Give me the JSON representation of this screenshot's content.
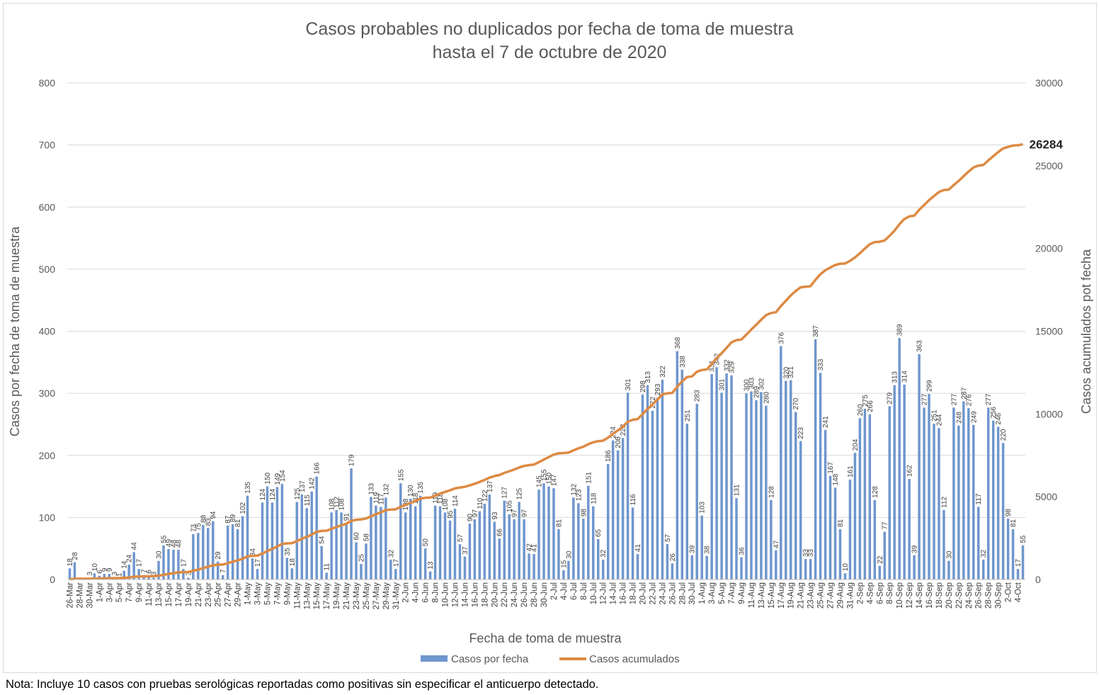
{
  "note": "Nota: Incluye 10 casos con pruebas serológicas reportadas como positivas sin especificar el anticuerpo detectado.",
  "chart_data": {
    "type": "bar",
    "title": [
      "Casos probables no duplicados por fecha de toma de muestra",
      "hasta el  7 de octubre de 2020"
    ],
    "xlabel": "Fecha de toma de muestra",
    "ylabel": "Casos por fecha de toma de muestra",
    "y2label": "Casos acumulados pot fecha",
    "ylim": [
      0,
      800
    ],
    "y2lim": [
      0,
      30000
    ],
    "yticks": [
      "0",
      "100",
      "200",
      "300",
      "400",
      "500",
      "600",
      "700",
      "800"
    ],
    "y2ticks": [
      "0",
      "5000",
      "10000",
      "15000",
      "20000",
      "25000",
      "30000"
    ],
    "grid": true,
    "legend_position": "bottom",
    "start_date": "2020-03-26",
    "x_tick_labels": [
      "26-Mar",
      "28-Mar",
      "30-Mar",
      "1-Apr",
      "3-Apr",
      "5-Apr",
      "7-Apr",
      "9-Apr",
      "11-Apr",
      "13-Apr",
      "15-Apr",
      "17-Apr",
      "19-Apr",
      "21-Apr",
      "23-Apr",
      "25-Apr",
      "27-Apr",
      "29-Apr",
      "1-May",
      "3-May",
      "5-May",
      "7-May",
      "9-May",
      "11-May",
      "13-May",
      "15-May",
      "17-May",
      "19-May",
      "21-May",
      "23-May",
      "25-May",
      "27-May",
      "29-May",
      "31-May",
      "2-Jun",
      "4-Jun",
      "6-Jun",
      "8-Jun",
      "10-Jun",
      "12-Jun",
      "14-Jun",
      "16-Jun",
      "18-Jun",
      "20-Jun",
      "22-Jun",
      "24-Jun",
      "26-Jun",
      "28-Jun",
      "30-Jun",
      "2-Jul",
      "4-Jul",
      "6-Jul",
      "8-Jul",
      "10-Jul",
      "12-Jul",
      "14-Jul",
      "16-Jul",
      "18-Jul",
      "20-Jul",
      "22-Jul",
      "24-Jul",
      "26-Jul",
      "28-Jul",
      "30-Jul",
      "1-Aug",
      "3-Aug",
      "5-Aug",
      "7-Aug",
      "9-Aug",
      "11-Aug",
      "13-Aug",
      "15-Aug",
      "17-Aug",
      "19-Aug",
      "21-Aug",
      "23-Aug",
      "25-Aug",
      "27-Aug",
      "29-Aug",
      "31-Aug",
      "2-Sep",
      "4-Sep",
      "6-Sep",
      "8-Sep",
      "10-Sep",
      "12-Sep",
      "14-Sep",
      "16-Sep",
      "18-Sep",
      "20-Sep",
      "22-Sep",
      "24-Sep",
      "26-Sep",
      "28-Sep",
      "30-Sep",
      "2-Oct",
      "4-Oct"
    ],
    "series": [
      {
        "name": "Casos por fecha",
        "color": "#6f96cd",
        "type": "bar",
        "values": [
          18,
          28,
          0,
          0,
          3,
          10,
          6,
          9,
          9,
          3,
          1,
          14,
          24,
          44,
          17,
          7,
          6,
          3,
          30,
          55,
          49,
          48,
          48,
          17,
          3,
          73,
          75,
          88,
          83,
          94,
          29,
          7,
          87,
          89,
          81,
          102,
          135,
          34,
          17,
          124,
          150,
          124,
          149,
          154,
          35,
          18,
          125,
          137,
          115,
          142,
          166,
          54,
          11,
          108,
          112,
          108,
          91,
          179,
          60,
          25,
          58,
          133,
          119,
          117,
          132,
          32,
          17,
          155,
          108,
          130,
          118,
          135,
          50,
          13,
          119,
          118,
          108,
          95,
          114,
          57,
          37,
          90,
          97,
          110,
          122,
          137,
          93,
          66,
          127,
          105,
          97,
          125,
          97,
          42,
          41,
          145,
          155,
          150,
          147,
          81,
          15,
          30,
          132,
          123,
          98,
          151,
          118,
          65,
          32,
          186,
          224,
          208,
          228,
          301,
          116,
          41,
          298,
          313,
          272,
          293,
          322,
          57,
          26,
          368,
          338,
          251,
          39,
          283,
          103,
          38,
          331,
          342,
          301,
          332,
          329,
          131,
          36,
          300,
          303,
          289,
          302,
          280,
          128,
          47,
          376,
          320,
          321,
          270,
          223,
          33,
          33,
          387,
          333,
          241,
          167,
          148,
          81,
          10,
          161,
          204,
          260,
          275,
          266,
          128,
          22,
          77,
          279,
          313,
          389,
          314,
          162,
          39,
          363,
          277,
          299,
          251,
          244,
          112,
          30,
          277,
          248,
          287,
          276,
          249,
          117,
          32,
          277,
          256,
          246,
          220,
          98,
          81,
          17,
          55
        ]
      },
      {
        "name": "Casos acumulados",
        "color": "#dd8a43",
        "type": "line",
        "final_label": "26284"
      }
    ]
  }
}
